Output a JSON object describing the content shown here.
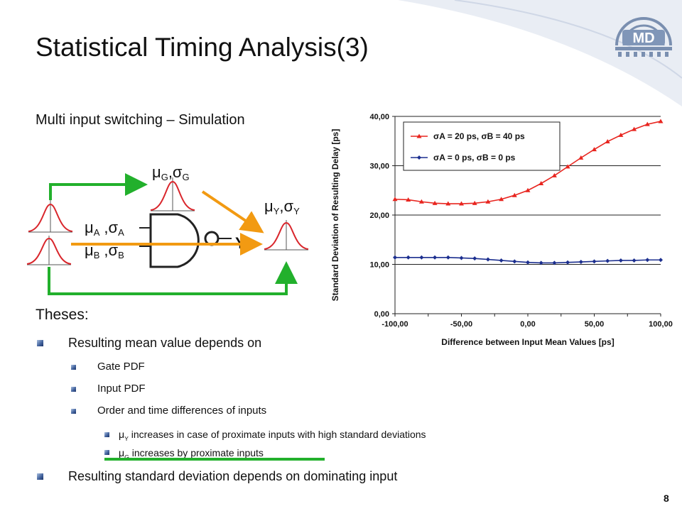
{
  "slide": {
    "title": "Statistical Timing Analysis(3)",
    "subtitle": "Multi input switching – Simulation",
    "logo_text": "MD",
    "page_number": "8"
  },
  "diagram": {
    "gate_label": "μ",
    "label_g_mu": "μ",
    "label_g_sub": "G",
    "label_g_sigma": ",σ",
    "label_g_sigma_sub": "G",
    "label_a_mu": "μ",
    "label_a_sub": "A",
    "label_a_sigma": ",σ",
    "label_a_sigma_sub": "A",
    "label_b_mu": "μ",
    "label_b_sub": "B",
    "label_b_sigma": ",σ",
    "label_b_sigma_sub": "B",
    "label_y_mu": "μ",
    "label_y_sub": "Y",
    "label_y_sigma": ",σ",
    "label_y_sigma_sub": "Y",
    "output_label": "Y"
  },
  "body": {
    "theses": "Theses:",
    "bullet1": "Resulting mean value depends on",
    "bullet1_sub1": "Gate PDF",
    "bullet1_sub2": "Input PDF",
    "bullet1_sub3": "Order and time differences of inputs",
    "bullet1_sub3_a_mu": "μ",
    "bullet1_sub3_a_sub": "Y",
    "bullet1_sub3_a": " increases in case of proximate inputs with high standard deviations",
    "bullet1_sub3_b_mu": "μ",
    "bullet1_sub3_b_sub": "G",
    "bullet1_sub3_b": " increases by proximate inputs",
    "bullet2": "Resulting standard deviation depends on dominating input"
  },
  "colors": {
    "series_red": "#e8251f",
    "series_blue": "#1c2f8f",
    "arrow_green": "#22b02c",
    "arrow_orange": "#f29a12",
    "pdf_red": "#d9262c"
  },
  "chart_data": {
    "type": "line",
    "xlabel": "Difference between Input Mean Values [ps]",
    "ylabel": "Standard Deviation of Resulting Delay [ps]",
    "xlim": [
      -100,
      100
    ],
    "ylim": [
      0,
      40
    ],
    "x_ticks": [
      "-100,00",
      "-50,00",
      "0,00",
      "50,00",
      "100,00"
    ],
    "y_ticks": [
      "0,00",
      "10,00",
      "20,00",
      "30,00",
      "40,00"
    ],
    "grid": "horizontal",
    "legend": "top-left",
    "x": [
      -100,
      -90,
      -80,
      -70,
      -60,
      -50,
      -40,
      -30,
      -20,
      -10,
      0,
      10,
      20,
      30,
      40,
      50,
      60,
      70,
      80,
      90,
      100
    ],
    "series": [
      {
        "name": "σA = 20 ps, σB = 40 ps",
        "color": "#e8251f",
        "marker": "triangle",
        "values": [
          23.2,
          23.1,
          22.7,
          22.4,
          22.3,
          22.3,
          22.4,
          22.7,
          23.2,
          24.0,
          25.0,
          26.4,
          28.0,
          29.8,
          31.6,
          33.3,
          34.9,
          36.2,
          37.4,
          38.4,
          39.0
        ]
      },
      {
        "name": "σA = 0 ps, σB = 0 ps",
        "color": "#1c2f8f",
        "marker": "diamond",
        "values": [
          11.4,
          11.4,
          11.4,
          11.4,
          11.4,
          11.3,
          11.2,
          11.0,
          10.8,
          10.6,
          10.4,
          10.3,
          10.3,
          10.4,
          10.5,
          10.6,
          10.7,
          10.8,
          10.8,
          10.9,
          10.9
        ]
      }
    ]
  }
}
